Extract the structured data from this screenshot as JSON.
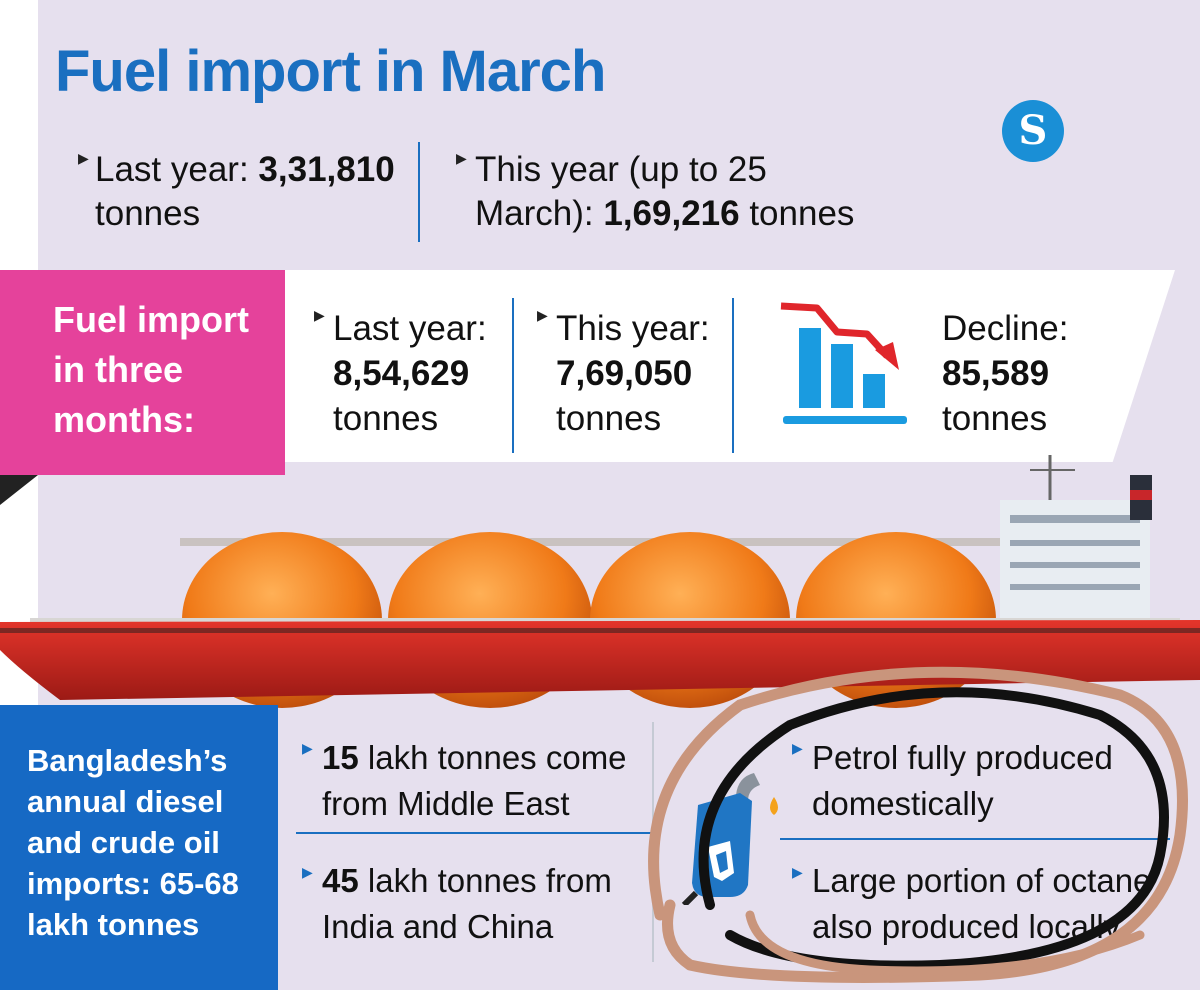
{
  "title": "Fuel import in March",
  "logo_text": "S",
  "march": {
    "last_year_label": "Last year: ",
    "last_year_value": "3,31,810",
    "last_year_unit": "tonnes",
    "this_year_label_1": "This year (up to 25",
    "this_year_label_2": "March): ",
    "this_year_value": "1,69,216",
    "this_year_unit": " tonnes"
  },
  "three_months": {
    "heading_1": "Fuel import",
    "heading_2": "in three",
    "heading_3": "months:",
    "last_year_label": "Last year:",
    "last_year_value": "8,54,629",
    "last_year_unit": "tonnes",
    "this_year_label": "This year:",
    "this_year_value": "7,69,050",
    "this_year_unit": "tonnes",
    "decline_label": "Decline:",
    "decline_value": "85,589",
    "decline_unit": "tonnes"
  },
  "annual": {
    "heading_1": "Bangladesh’s",
    "heading_2": "annual diesel",
    "heading_3": "and crude oil",
    "heading_4": "imports: 65-68",
    "heading_5": "lakh tonnes",
    "item1_value": "15",
    "item1_text_1": " lakh tonnes come",
    "item1_text_2": "from Middle East",
    "item2_value": "45",
    "item2_text_1": " lakh tonnes from",
    "item2_text_2": "India and China"
  },
  "domestic": {
    "item1_1": "Petrol fully produced",
    "item1_2": "domestically",
    "item2_1": "Large portion of octane",
    "item2_2": "also produced locally"
  },
  "colors": {
    "accent_blue": "#1a6fc0",
    "pink": "#e5429b",
    "dark_blue": "#1669c4",
    "decline_red": "#e0262b",
    "chart_blue": "#1a9be0"
  },
  "icons": [
    "decline-chart-icon",
    "fuel-nozzle-icon",
    "ship-illustration",
    "logo"
  ]
}
